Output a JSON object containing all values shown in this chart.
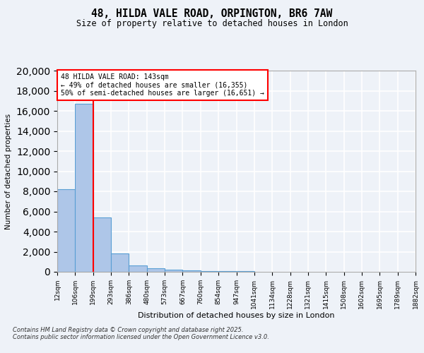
{
  "title_line1": "48, HILDA VALE ROAD, ORPINGTON, BR6 7AW",
  "title_line2": "Size of property relative to detached houses in London",
  "xlabel": "Distribution of detached houses by size in London",
  "ylabel": "Number of detached properties",
  "bin_labels": [
    "12sqm",
    "106sqm",
    "199sqm",
    "293sqm",
    "386sqm",
    "480sqm",
    "573sqm",
    "667sqm",
    "760sqm",
    "854sqm",
    "947sqm",
    "1041sqm",
    "1134sqm",
    "1228sqm",
    "1321sqm",
    "1415sqm",
    "1508sqm",
    "1602sqm",
    "1695sqm",
    "1789sqm",
    "1882sqm"
  ],
  "bar_heights": [
    8200,
    16700,
    5400,
    1800,
    650,
    350,
    200,
    120,
    80,
    60,
    45,
    35,
    25,
    20,
    15,
    12,
    10,
    8,
    6,
    5
  ],
  "bar_color": "#aec6e8",
  "bar_edge_color": "#5a9fd4",
  "red_line_bin_index": 1,
  "annotation_title": "48 HILDA VALE ROAD: 143sqm",
  "annotation_line1": "← 49% of detached houses are smaller (16,355)",
  "annotation_line2": "50% of semi-detached houses are larger (16,651) →",
  "ylim": [
    0,
    20000
  ],
  "yticks": [
    0,
    2000,
    4000,
    6000,
    8000,
    10000,
    12000,
    14000,
    16000,
    18000,
    20000
  ],
  "footer_line1": "Contains HM Land Registry data © Crown copyright and database right 2025.",
  "footer_line2": "Contains public sector information licensed under the Open Government Licence v3.0.",
  "background_color": "#eef2f8",
  "grid_color": "#ffffff"
}
